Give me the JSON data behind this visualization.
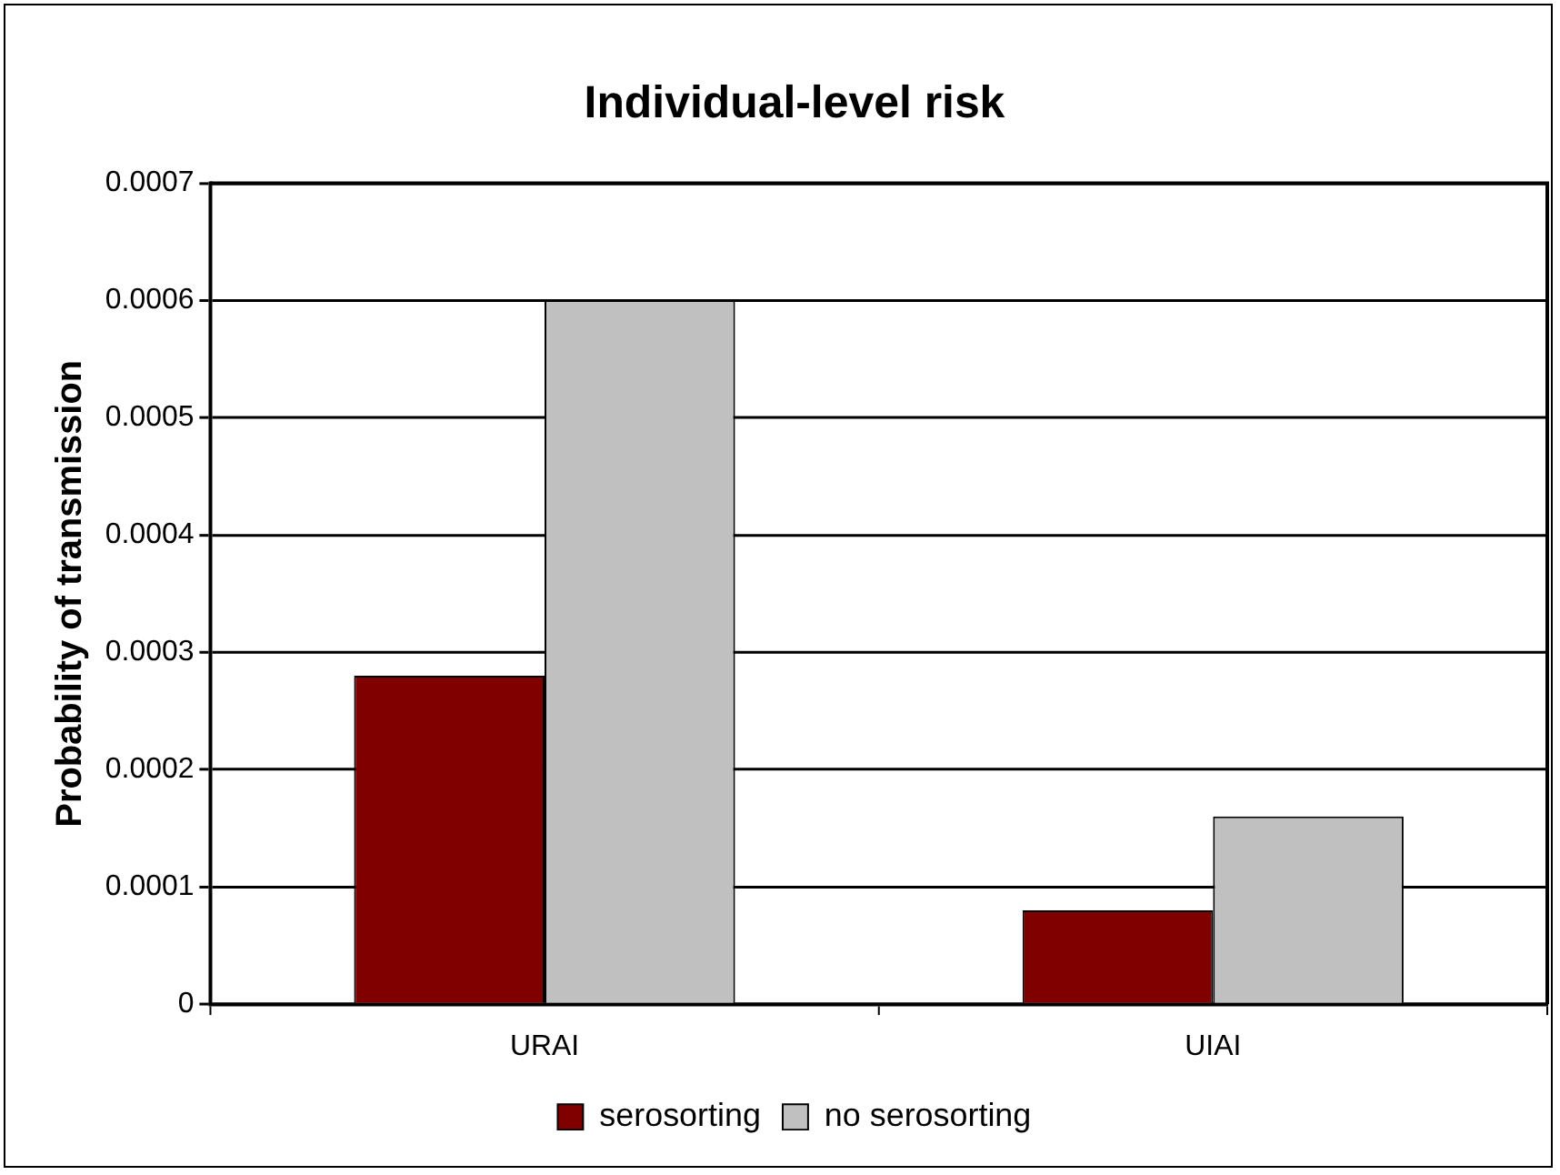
{
  "chart_data": {
    "type": "bar",
    "title": "Individual-level risk",
    "ylabel": "Probability of transmission",
    "categories": [
      "URAI",
      "UIAI"
    ],
    "series": [
      {
        "name": "serosorting",
        "color": "#800000",
        "values": [
          0.00028,
          8e-05
        ]
      },
      {
        "name": "no serosorting",
        "color": "#c0c0c0",
        "values": [
          0.0006,
          0.00016
        ]
      }
    ],
    "ylim": [
      0,
      0.0007
    ],
    "yticks": [
      0,
      0.0001,
      0.0002,
      0.0003,
      0.0004,
      0.0005,
      0.0006,
      0.0007
    ],
    "grid": "y",
    "legend": "bottom"
  }
}
